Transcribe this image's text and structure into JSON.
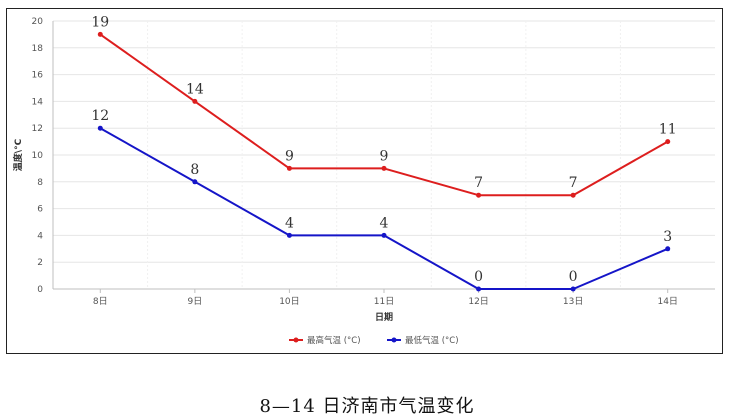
{
  "chart_data": {
    "type": "line",
    "categories": [
      "8日",
      "9日",
      "10日",
      "11日",
      "12日",
      "13日",
      "14日"
    ],
    "series": [
      {
        "name": "最高气温 (°C)",
        "values": [
          19,
          14,
          9,
          9,
          7,
          7,
          11
        ],
        "color": "#dd1e1e"
      },
      {
        "name": "最低气温 (°C)",
        "values": [
          12,
          8,
          4,
          4,
          0,
          0,
          3
        ],
        "color": "#1515c8"
      }
    ],
    "xlabel": "日期",
    "ylabel": "温度\\°C",
    "ylim": [
      0,
      20
    ],
    "yticks": [
      0,
      2,
      4,
      6,
      8,
      10,
      12,
      14,
      16,
      18,
      20
    ],
    "grid": true,
    "legend_position": "bottom-center"
  },
  "caption": "8—14 日济南市气温变化"
}
